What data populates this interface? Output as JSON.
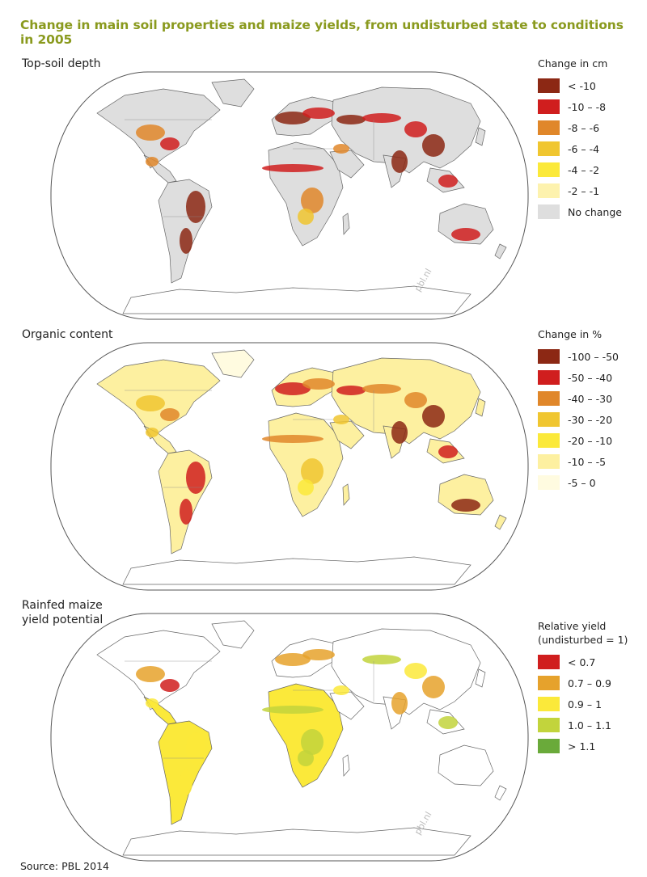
{
  "title": "Change in main soil properties and maize yields, from undisturbed state to conditions in 2005",
  "source": "Source: PBL 2014",
  "watermark": "pbl.nl",
  "colors": {
    "title": "#8a9a1e",
    "ocean": "#ffffff",
    "outline": "#555555",
    "no_data": "#ffffff"
  },
  "panels": [
    {
      "id": "topsoil",
      "title": "Top-soil depth",
      "legend_title": "Change in cm",
      "legend": [
        {
          "label": "< -10",
          "color": "#8c2814"
        },
        {
          "label": "-10 – -8",
          "color": "#d01e1e"
        },
        {
          "label": "-8 – -6",
          "color": "#e0872a"
        },
        {
          "label": "-6 – -4",
          "color": "#f0c630"
        },
        {
          "label": "-4 – -2",
          "color": "#fbe93a"
        },
        {
          "label": "-2 – -1",
          "color": "#fdf2ae"
        },
        {
          "label": "No change",
          "color": "#dedede"
        }
      ],
      "land_base": "#dedede"
    },
    {
      "id": "organic",
      "title": "Organic content",
      "legend_title": "Change in %",
      "legend": [
        {
          "label": "-100 – -50",
          "color": "#8c2814"
        },
        {
          "label": "-50 – -40",
          "color": "#d01e1e"
        },
        {
          "label": "-40 – -30",
          "color": "#e0872a"
        },
        {
          "label": "-30 – -20",
          "color": "#f0c630"
        },
        {
          "label": "-20 – -10",
          "color": "#fbe93a"
        },
        {
          "label": "-10 – -5",
          "color": "#fdf0a0"
        },
        {
          "label": "-5 – 0",
          "color": "#fffbe0"
        }
      ],
      "land_base": "#fffbe0"
    },
    {
      "id": "maize",
      "title": "Rainfed maize\nyield potential",
      "legend_title": "Relative yield\n(undisturbed = 1)",
      "legend": [
        {
          "label": "< 0.7",
          "color": "#d01e1e"
        },
        {
          "label": "0.7 – 0.9",
          "color": "#e6a22c"
        },
        {
          "label": "0.9 – 1",
          "color": "#fbe93a"
        },
        {
          "label": "1.0 – 1.1",
          "color": "#c2d43c"
        },
        {
          "label": "> 1.1",
          "color": "#6aaa3a"
        }
      ],
      "land_base": "#ffffff"
    }
  ]
}
